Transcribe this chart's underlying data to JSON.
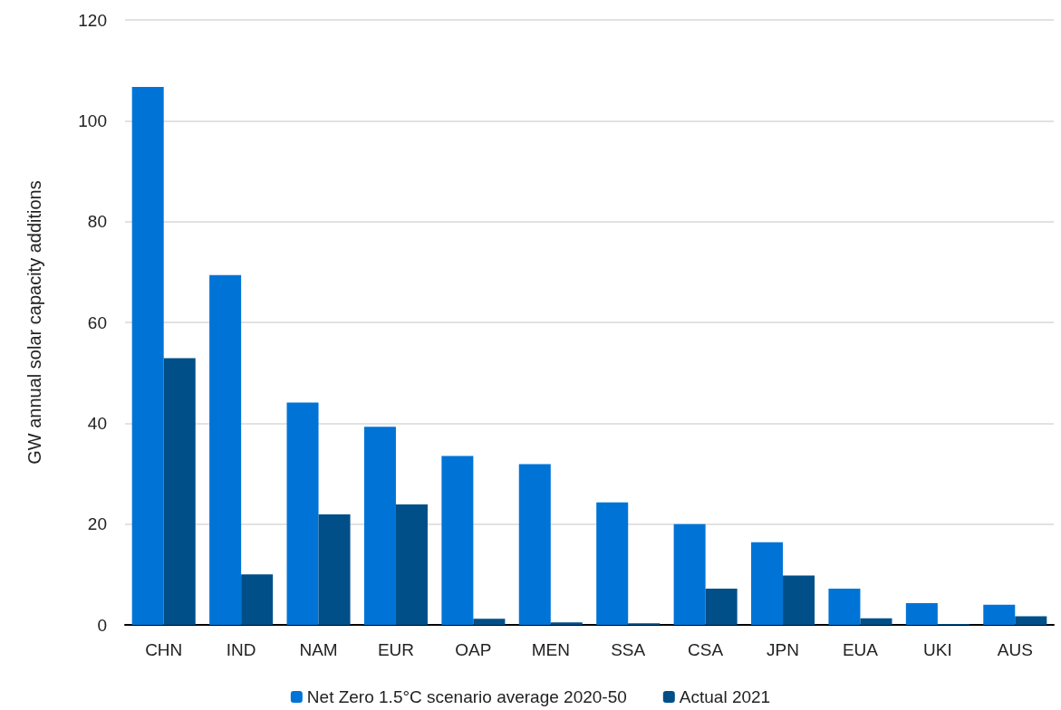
{
  "chart_data": {
    "type": "bar",
    "ylabel": "GW annual solar capacity additions",
    "categories": [
      "CHN",
      "IND",
      "NAM",
      "EUR",
      "OAP",
      "MEN",
      "SSA",
      "CSA",
      "JPN",
      "EUA",
      "UKI",
      "AUS"
    ],
    "series": [
      {
        "name": "Net Zero 1.5°C scenario average 2020-50",
        "color": "#0074d6",
        "values": [
          106.7,
          69.4,
          44.1,
          39.3,
          33.5,
          31.9,
          24.3,
          20.0,
          16.4,
          7.2,
          4.3,
          4.0
        ]
      },
      {
        "name": "Actual 2021",
        "color": "#004f88",
        "values": [
          52.9,
          10.0,
          21.9,
          23.9,
          1.2,
          0.5,
          0.3,
          7.2,
          9.8,
          1.3,
          0.2,
          1.7
        ]
      }
    ],
    "ylim": [
      0,
      120
    ],
    "yticks": [
      0,
      20,
      40,
      60,
      80,
      100,
      120
    ],
    "grid": "y",
    "legend": "bottom"
  }
}
